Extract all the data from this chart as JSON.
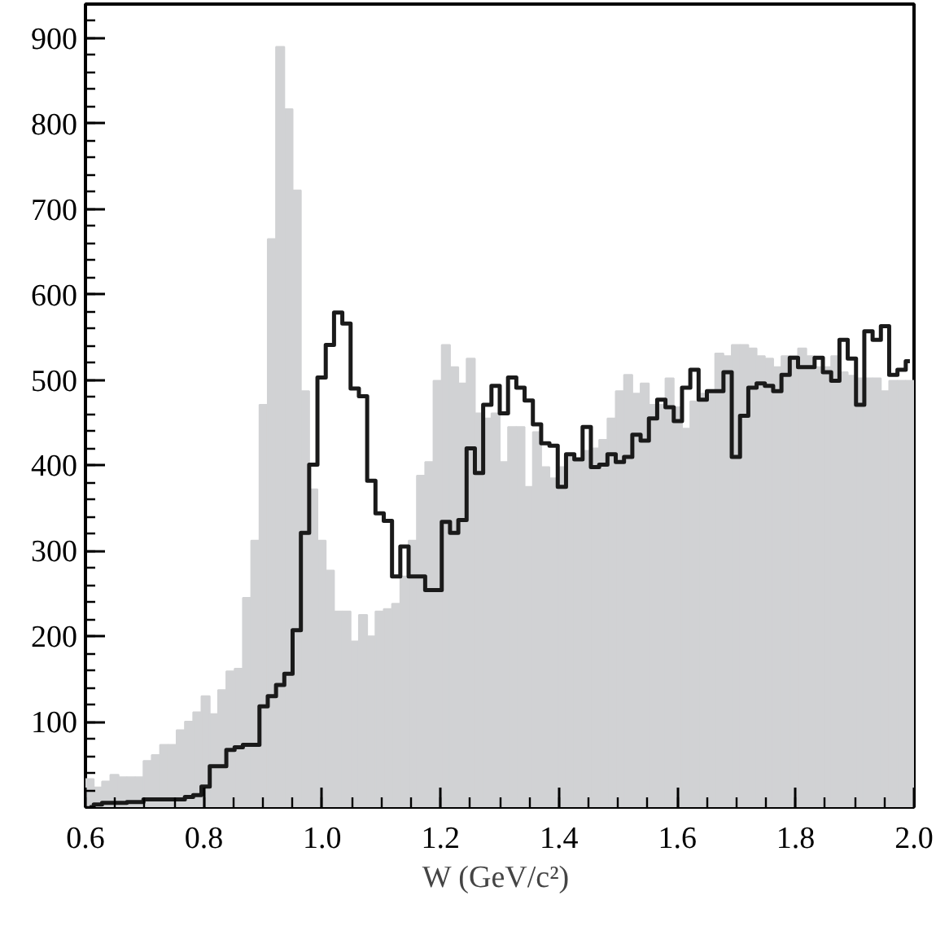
{
  "chart_data": {
    "type": "histogram",
    "xlabel": "W  (GeV/c²)",
    "bins": [
      0.6,
      0.614,
      0.628,
      0.642,
      0.656,
      0.67,
      0.684,
      0.698,
      0.712,
      0.726,
      0.74,
      0.754,
      0.768,
      0.782,
      0.796,
      0.81,
      0.824,
      0.838,
      0.852,
      0.866,
      0.88,
      0.894,
      0.908,
      0.922,
      0.936,
      0.95,
      0.964,
      0.978,
      0.992,
      1.006,
      1.02,
      1.034,
      1.048,
      1.062,
      1.076,
      1.09,
      1.104,
      1.118,
      1.132,
      1.146,
      1.16,
      1.174,
      1.188,
      1.202,
      1.216,
      1.23,
      1.244,
      1.258,
      1.272,
      1.286,
      1.3,
      1.314,
      1.328,
      1.342,
      1.356,
      1.37,
      1.384,
      1.398,
      1.412,
      1.426,
      1.44,
      1.454,
      1.468,
      1.482,
      1.496,
      1.51,
      1.524,
      1.538,
      1.552,
      1.566,
      1.58,
      1.594,
      1.608,
      1.622,
      1.636,
      1.65,
      1.664,
      1.678,
      1.692,
      1.706,
      1.72,
      1.734,
      1.748,
      1.762,
      1.776,
      1.79,
      1.804,
      1.818,
      1.832,
      1.846,
      1.86,
      1.874,
      1.888,
      1.902,
      1.916,
      1.93,
      1.944,
      1.958,
      1.972,
      1.986,
      2.0
    ],
    "series": [
      {
        "color": "#d1d2d4",
        "values": [
          33,
          23,
          30,
          38,
          35,
          35,
          35,
          54,
          61,
          73,
          73,
          90,
          100,
          111,
          130,
          109,
          137,
          159,
          162,
          245,
          312,
          471,
          665,
          890,
          817,
          722,
          487,
          372,
          312,
          277,
          229,
          229,
          194,
          225,
          200,
          229,
          232,
          238,
          270,
          312,
          388,
          404,
          499,
          541,
          515,
          496,
          525,
          461,
          455,
          461,
          404,
          445,
          445,
          375,
          439,
          398,
          385,
          398,
          410,
          405,
          417,
          420,
          430,
          455,
          487,
          506,
          484,
          496,
          471,
          471,
          502,
          468,
          443,
          475,
          484,
          484,
          531,
          528,
          541,
          541,
          537,
          528,
          525,
          515,
          528,
          528,
          537,
          528,
          515,
          515,
          528,
          509,
          505,
          502,
          502,
          502,
          487,
          499,
          499,
          499
        ]
      },
      {
        "type": "step",
        "color": "#1a1a1a",
        "x": [
          0.607,
          0.621,
          0.635,
          0.649,
          0.663,
          0.677,
          0.691,
          0.705,
          0.719,
          0.733,
          0.747,
          0.761,
          0.775,
          0.789,
          0.803,
          0.817,
          0.831,
          0.845,
          0.859,
          0.873,
          0.887,
          0.901,
          0.915,
          0.929,
          0.943,
          0.957,
          0.971,
          0.985,
          0.999,
          1.013,
          1.027,
          1.041,
          1.055,
          1.069,
          1.083,
          1.097,
          1.111,
          1.125,
          1.139,
          1.153,
          1.167,
          1.181,
          1.195,
          1.209,
          1.223,
          1.237,
          1.251,
          1.265,
          1.279,
          1.293,
          1.307,
          1.321,
          1.335,
          1.349,
          1.363,
          1.377,
          1.391,
          1.405,
          1.419,
          1.433,
          1.447,
          1.461,
          1.475,
          1.489,
          1.503,
          1.517,
          1.531,
          1.545,
          1.559,
          1.573,
          1.587,
          1.601,
          1.615,
          1.629,
          1.643,
          1.657,
          1.671,
          1.685,
          1.699,
          1.713,
          1.727,
          1.741,
          1.755,
          1.769,
          1.783,
          1.797,
          1.811,
          1.825,
          1.839,
          1.853,
          1.867,
          1.881,
          1.895,
          1.909,
          1.923,
          1.937,
          1.951,
          1.965,
          1.979,
          1.993
        ],
        "values": [
          0,
          3,
          5,
          5,
          5,
          6,
          6,
          9,
          9,
          9,
          9,
          9,
          12,
          14,
          24,
          48,
          48,
          67,
          70,
          73,
          73,
          118,
          130,
          143,
          156,
          207,
          321,
          401,
          503,
          541,
          579,
          566,
          490,
          481,
          382,
          344,
          335,
          270,
          305,
          270,
          270,
          254,
          254,
          334,
          321,
          336,
          420,
          391,
          471,
          493,
          461,
          503,
          491,
          476,
          448,
          426,
          423,
          375,
          413,
          407,
          445,
          398,
          401,
          413,
          404,
          410,
          436,
          429,
          455,
          477,
          468,
          452,
          491,
          512,
          477,
          487,
          487,
          509,
          410,
          458,
          491,
          496,
          493,
          487,
          506,
          526,
          515,
          515,
          526,
          509,
          499,
          547,
          525,
          471,
          557,
          547,
          563,
          506,
          512,
          522
        ]
      }
    ],
    "xlim": [
      0.6,
      2.0
    ],
    "ylim": [
      0,
      940
    ],
    "xticks": [
      {
        "value": 0.6,
        "label": "0.6"
      },
      {
        "value": 0.8,
        "label": "0.8"
      },
      {
        "value": 1.0,
        "label": "1.0"
      },
      {
        "value": 1.2,
        "label": "1.2"
      },
      {
        "value": 1.4,
        "label": "1.4"
      },
      {
        "value": 1.6,
        "label": "1.6"
      },
      {
        "value": 1.8,
        "label": "1.8"
      },
      {
        "value": 2.0,
        "label": "2.0"
      }
    ],
    "yticks": [
      100,
      200,
      300,
      400,
      500,
      600,
      700,
      800,
      900
    ],
    "grid": false
  }
}
